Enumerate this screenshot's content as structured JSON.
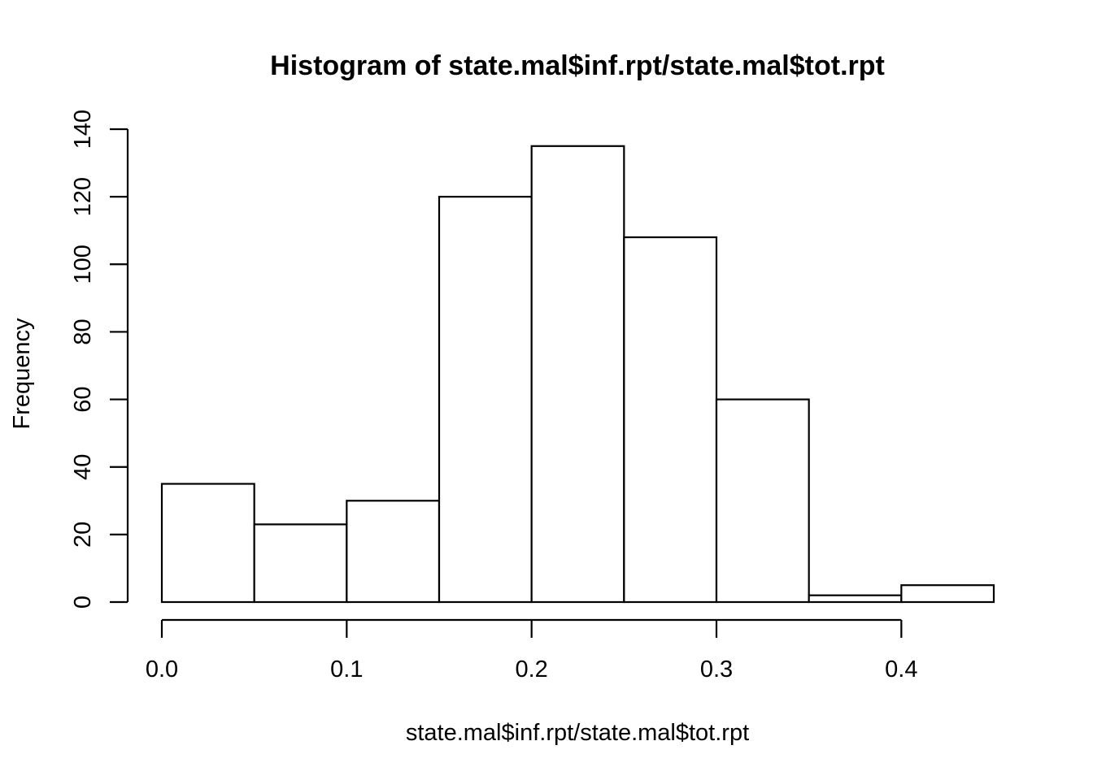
{
  "chart_data": {
    "type": "bar",
    "title": "Histogram of state.mal$inf.rpt/state.mal$tot.rpt",
    "xlabel": "state.mal$inf.rpt/state.mal$tot.rpt",
    "ylabel": "Frequency",
    "bins": [
      {
        "start": 0.0,
        "end": 0.05,
        "count": 35
      },
      {
        "start": 0.05,
        "end": 0.1,
        "count": 23
      },
      {
        "start": 0.1,
        "end": 0.15,
        "count": 30
      },
      {
        "start": 0.15,
        "end": 0.2,
        "count": 120
      },
      {
        "start": 0.2,
        "end": 0.25,
        "count": 135
      },
      {
        "start": 0.25,
        "end": 0.3,
        "count": 108
      },
      {
        "start": 0.3,
        "end": 0.35,
        "count": 60
      },
      {
        "start": 0.35,
        "end": 0.4,
        "count": 2
      },
      {
        "start": 0.4,
        "end": 0.45,
        "count": 5
      }
    ],
    "xlim": [
      0.0,
      0.45
    ],
    "ylim": [
      0,
      140
    ],
    "xticks": [
      0.0,
      0.1,
      0.2,
      0.3,
      0.4
    ],
    "xtick_labels": [
      "0.0",
      "0.1",
      "0.2",
      "0.3",
      "0.4"
    ],
    "yticks": [
      0,
      20,
      40,
      60,
      80,
      100,
      120,
      140
    ],
    "ytick_labels": [
      "0",
      "20",
      "40",
      "60",
      "80",
      "100",
      "120",
      "140"
    ],
    "grid": false,
    "colors": {
      "bar_fill": "#ffffff",
      "bar_stroke": "#000000",
      "axis": "#000000",
      "background": "#ffffff"
    }
  }
}
